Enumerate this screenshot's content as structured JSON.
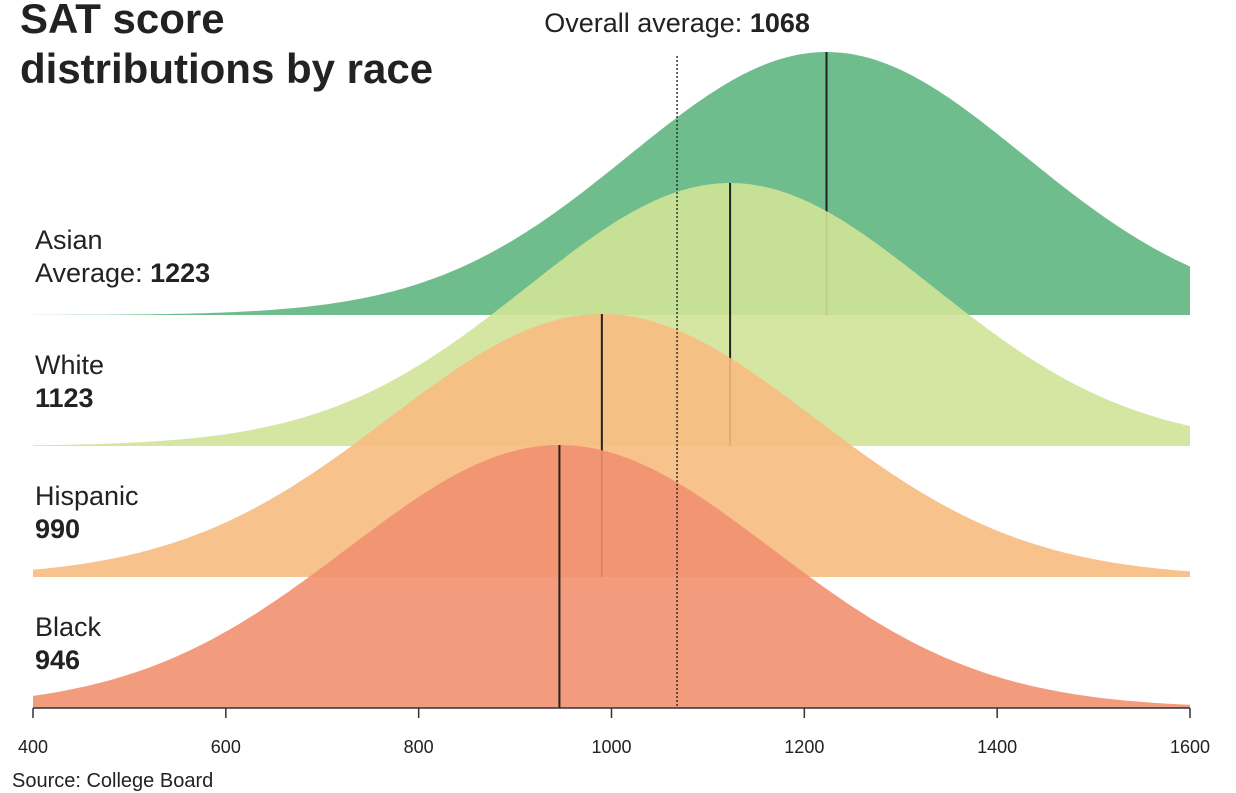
{
  "chart_data": {
    "type": "ridgeline",
    "title": "SAT score distributions by race",
    "source": "Source: College Board",
    "overall_label": "Overall average:",
    "overall_average": 1068,
    "xlim": [
      400,
      1600
    ],
    "xticks": [
      400,
      600,
      800,
      1000,
      1200,
      1400,
      1600
    ],
    "series": [
      {
        "name": "Asian",
        "average_label": "Average:",
        "mean": 1223,
        "sd": 205,
        "color": "#5fb67f"
      },
      {
        "name": "White",
        "mean": 1123,
        "sd": 210,
        "color": "#cfe397"
      },
      {
        "name": "Hispanic",
        "mean": 990,
        "sd": 220,
        "color": "#f7bb80"
      },
      {
        "name": "Black",
        "mean": 946,
        "sd": 220,
        "color": "#f1906f"
      }
    ]
  }
}
